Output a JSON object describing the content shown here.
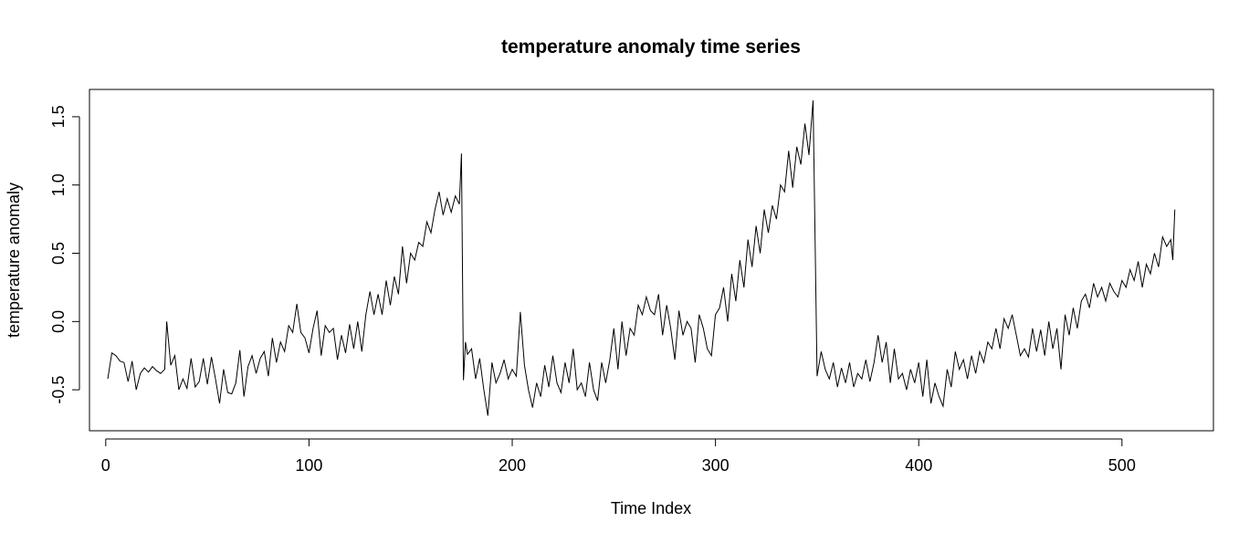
{
  "chart_data": {
    "type": "line",
    "title": "temperature anomaly time series",
    "xlabel": "Time Index",
    "ylabel": "temperature anomaly",
    "xlim": [
      -8,
      545
    ],
    "ylim": [
      -0.8,
      1.7
    ],
    "xticks": [
      0,
      100,
      200,
      300,
      400,
      500
    ],
    "xtick_labels": [
      "0",
      "100",
      "200",
      "300",
      "400",
      "500"
    ],
    "yticks": [
      -0.5,
      0.0,
      0.5,
      1.0,
      1.5
    ],
    "ytick_labels": [
      "-0.5",
      "0.0",
      "0.5",
      "1.0",
      "1.5"
    ],
    "grid": false,
    "legend": "none",
    "series": [
      {
        "color": "#000000",
        "points": [
          [
            1,
            -0.42
          ],
          [
            3,
            -0.23
          ],
          [
            5,
            -0.25
          ],
          [
            7,
            -0.29
          ],
          [
            9,
            -0.3
          ],
          [
            11,
            -0.44
          ],
          [
            13,
            -0.29
          ],
          [
            15,
            -0.5
          ],
          [
            17,
            -0.38
          ],
          [
            19,
            -0.34
          ],
          [
            21,
            -0.37
          ],
          [
            23,
            -0.33
          ],
          [
            25,
            -0.36
          ],
          [
            27,
            -0.38
          ],
          [
            29,
            -0.35
          ],
          [
            30,
            0.0
          ],
          [
            32,
            -0.32
          ],
          [
            34,
            -0.25
          ],
          [
            36,
            -0.5
          ],
          [
            38,
            -0.42
          ],
          [
            40,
            -0.49
          ],
          [
            42,
            -0.27
          ],
          [
            44,
            -0.48
          ],
          [
            46,
            -0.44
          ],
          [
            48,
            -0.27
          ],
          [
            50,
            -0.46
          ],
          [
            52,
            -0.26
          ],
          [
            54,
            -0.42
          ],
          [
            56,
            -0.6
          ],
          [
            58,
            -0.35
          ],
          [
            60,
            -0.52
          ],
          [
            62,
            -0.53
          ],
          [
            64,
            -0.45
          ],
          [
            66,
            -0.21
          ],
          [
            68,
            -0.55
          ],
          [
            70,
            -0.33
          ],
          [
            72,
            -0.25
          ],
          [
            74,
            -0.38
          ],
          [
            76,
            -0.27
          ],
          [
            78,
            -0.22
          ],
          [
            80,
            -0.4
          ],
          [
            82,
            -0.12
          ],
          [
            84,
            -0.3
          ],
          [
            86,
            -0.15
          ],
          [
            88,
            -0.22
          ],
          [
            90,
            -0.03
          ],
          [
            92,
            -0.08
          ],
          [
            94,
            0.13
          ],
          [
            96,
            -0.08
          ],
          [
            98,
            -0.12
          ],
          [
            100,
            -0.23
          ],
          [
            102,
            -0.05
          ],
          [
            104,
            0.08
          ],
          [
            106,
            -0.25
          ],
          [
            108,
            -0.03
          ],
          [
            110,
            -0.08
          ],
          [
            112,
            -0.05
          ],
          [
            114,
            -0.28
          ],
          [
            116,
            -0.1
          ],
          [
            118,
            -0.23
          ],
          [
            120,
            -0.02
          ],
          [
            122,
            -0.2
          ],
          [
            124,
            0.0
          ],
          [
            126,
            -0.22
          ],
          [
            128,
            0.05
          ],
          [
            130,
            0.22
          ],
          [
            132,
            0.05
          ],
          [
            134,
            0.2
          ],
          [
            136,
            0.05
          ],
          [
            138,
            0.3
          ],
          [
            140,
            0.12
          ],
          [
            142,
            0.33
          ],
          [
            144,
            0.2
          ],
          [
            146,
            0.55
          ],
          [
            148,
            0.28
          ],
          [
            150,
            0.5
          ],
          [
            152,
            0.45
          ],
          [
            154,
            0.58
          ],
          [
            156,
            0.55
          ],
          [
            158,
            0.73
          ],
          [
            160,
            0.65
          ],
          [
            162,
            0.82
          ],
          [
            164,
            0.95
          ],
          [
            166,
            0.78
          ],
          [
            168,
            0.9
          ],
          [
            170,
            0.8
          ],
          [
            172,
            0.92
          ],
          [
            174,
            0.86
          ],
          [
            175,
            1.23
          ],
          [
            176,
            -0.43
          ],
          [
            177,
            -0.15
          ],
          [
            178,
            -0.24
          ],
          [
            180,
            -0.2
          ],
          [
            182,
            -0.42
          ],
          [
            184,
            -0.27
          ],
          [
            186,
            -0.5
          ],
          [
            188,
            -0.69
          ],
          [
            190,
            -0.3
          ],
          [
            192,
            -0.45
          ],
          [
            194,
            -0.38
          ],
          [
            196,
            -0.28
          ],
          [
            198,
            -0.42
          ],
          [
            200,
            -0.35
          ],
          [
            202,
            -0.4
          ],
          [
            204,
            0.07
          ],
          [
            206,
            -0.32
          ],
          [
            208,
            -0.5
          ],
          [
            210,
            -0.63
          ],
          [
            212,
            -0.45
          ],
          [
            214,
            -0.55
          ],
          [
            216,
            -0.32
          ],
          [
            218,
            -0.48
          ],
          [
            220,
            -0.25
          ],
          [
            222,
            -0.45
          ],
          [
            224,
            -0.52
          ],
          [
            226,
            -0.3
          ],
          [
            228,
            -0.45
          ],
          [
            230,
            -0.2
          ],
          [
            232,
            -0.5
          ],
          [
            234,
            -0.45
          ],
          [
            236,
            -0.55
          ],
          [
            238,
            -0.3
          ],
          [
            240,
            -0.5
          ],
          [
            242,
            -0.58
          ],
          [
            244,
            -0.3
          ],
          [
            246,
            -0.45
          ],
          [
            248,
            -0.28
          ],
          [
            250,
            -0.05
          ],
          [
            252,
            -0.35
          ],
          [
            254,
            0.0
          ],
          [
            256,
            -0.25
          ],
          [
            258,
            -0.05
          ],
          [
            260,
            -0.1
          ],
          [
            262,
            0.12
          ],
          [
            264,
            0.05
          ],
          [
            266,
            0.18
          ],
          [
            268,
            0.08
          ],
          [
            270,
            0.05
          ],
          [
            272,
            0.2
          ],
          [
            274,
            -0.1
          ],
          [
            276,
            0.12
          ],
          [
            278,
            -0.05
          ],
          [
            280,
            -0.28
          ],
          [
            282,
            0.08
          ],
          [
            284,
            -0.1
          ],
          [
            286,
            0.0
          ],
          [
            288,
            -0.05
          ],
          [
            290,
            -0.3
          ],
          [
            292,
            0.05
          ],
          [
            294,
            -0.05
          ],
          [
            296,
            -0.2
          ],
          [
            298,
            -0.25
          ],
          [
            300,
            0.05
          ],
          [
            302,
            0.1
          ],
          [
            304,
            0.25
          ],
          [
            306,
            0.0
          ],
          [
            308,
            0.35
          ],
          [
            310,
            0.15
          ],
          [
            312,
            0.45
          ],
          [
            314,
            0.25
          ],
          [
            316,
            0.6
          ],
          [
            318,
            0.4
          ],
          [
            320,
            0.7
          ],
          [
            322,
            0.5
          ],
          [
            324,
            0.82
          ],
          [
            326,
            0.65
          ],
          [
            328,
            0.85
          ],
          [
            330,
            0.75
          ],
          [
            332,
            1.0
          ],
          [
            334,
            0.95
          ],
          [
            336,
            1.25
          ],
          [
            338,
            0.98
          ],
          [
            340,
            1.28
          ],
          [
            342,
            1.15
          ],
          [
            344,
            1.45
          ],
          [
            346,
            1.22
          ],
          [
            348,
            1.62
          ],
          [
            350,
            -0.4
          ],
          [
            352,
            -0.22
          ],
          [
            354,
            -0.35
          ],
          [
            356,
            -0.42
          ],
          [
            358,
            -0.3
          ],
          [
            360,
            -0.48
          ],
          [
            362,
            -0.34
          ],
          [
            364,
            -0.45
          ],
          [
            366,
            -0.3
          ],
          [
            368,
            -0.48
          ],
          [
            370,
            -0.38
          ],
          [
            372,
            -0.42
          ],
          [
            374,
            -0.28
          ],
          [
            376,
            -0.44
          ],
          [
            378,
            -0.3
          ],
          [
            380,
            -0.1
          ],
          [
            382,
            -0.3
          ],
          [
            384,
            -0.15
          ],
          [
            386,
            -0.45
          ],
          [
            388,
            -0.2
          ],
          [
            390,
            -0.42
          ],
          [
            392,
            -0.38
          ],
          [
            394,
            -0.5
          ],
          [
            396,
            -0.35
          ],
          [
            398,
            -0.45
          ],
          [
            400,
            -0.3
          ],
          [
            402,
            -0.55
          ],
          [
            404,
            -0.28
          ],
          [
            406,
            -0.6
          ],
          [
            408,
            -0.45
          ],
          [
            410,
            -0.55
          ],
          [
            412,
            -0.62
          ],
          [
            414,
            -0.35
          ],
          [
            416,
            -0.48
          ],
          [
            418,
            -0.22
          ],
          [
            420,
            -0.35
          ],
          [
            422,
            -0.28
          ],
          [
            424,
            -0.42
          ],
          [
            426,
            -0.25
          ],
          [
            428,
            -0.38
          ],
          [
            430,
            -0.22
          ],
          [
            432,
            -0.3
          ],
          [
            434,
            -0.15
          ],
          [
            436,
            -0.2
          ],
          [
            438,
            -0.05
          ],
          [
            440,
            -0.2
          ],
          [
            442,
            0.02
          ],
          [
            444,
            -0.05
          ],
          [
            446,
            0.05
          ],
          [
            448,
            -0.1
          ],
          [
            450,
            -0.25
          ],
          [
            452,
            -0.2
          ],
          [
            454,
            -0.26
          ],
          [
            456,
            -0.05
          ],
          [
            458,
            -0.22
          ],
          [
            460,
            -0.06
          ],
          [
            462,
            -0.25
          ],
          [
            464,
            0.0
          ],
          [
            466,
            -0.2
          ],
          [
            468,
            -0.05
          ],
          [
            470,
            -0.35
          ],
          [
            472,
            0.05
          ],
          [
            474,
            -0.1
          ],
          [
            476,
            0.1
          ],
          [
            478,
            -0.05
          ],
          [
            480,
            0.15
          ],
          [
            482,
            0.2
          ],
          [
            484,
            0.1
          ],
          [
            486,
            0.28
          ],
          [
            488,
            0.18
          ],
          [
            490,
            0.25
          ],
          [
            492,
            0.15
          ],
          [
            494,
            0.28
          ],
          [
            496,
            0.22
          ],
          [
            498,
            0.18
          ],
          [
            500,
            0.3
          ],
          [
            502,
            0.25
          ],
          [
            504,
            0.38
          ],
          [
            506,
            0.3
          ],
          [
            508,
            0.44
          ],
          [
            510,
            0.25
          ],
          [
            512,
            0.42
          ],
          [
            514,
            0.35
          ],
          [
            516,
            0.5
          ],
          [
            518,
            0.4
          ],
          [
            520,
            0.62
          ],
          [
            522,
            0.55
          ],
          [
            524,
            0.6
          ],
          [
            525,
            0.45
          ],
          [
            526,
            0.82
          ]
        ]
      }
    ]
  }
}
